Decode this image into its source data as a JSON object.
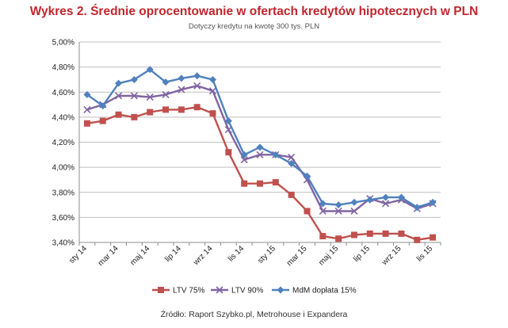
{
  "header": {
    "title": "Wykres 2. Średnie oprocentowanie w ofertach kredytów hipotecznych w PLN",
    "subtitle": "Dotyczy kredytu na kwotę 300 tys. PLN"
  },
  "footer": {
    "source": "Źródło: Raport Szybko.pl, Metrohouse i Expandera"
  },
  "chart_data": {
    "type": "line",
    "title": "Wykres 2. Średnie oprocentowanie w ofertach kredytów hipotecznych w PLN",
    "subtitle": "Dotyczy kredytu na kwotę 300 tys. PLN",
    "xlabel": "",
    "ylabel": "",
    "ylim": [
      3.4,
      5.0
    ],
    "ytick_step": 0.2,
    "yticks": [
      "3,40%",
      "3,60%",
      "3,80%",
      "4,00%",
      "4,20%",
      "4,40%",
      "4,60%",
      "4,80%",
      "5,00%"
    ],
    "grid": "horizontal",
    "legend_position": "bottom",
    "x": [
      "sty 14",
      "lut 14",
      "mar 14",
      "kwi 14",
      "maj 14",
      "cze 14",
      "lip 14",
      "sie 14",
      "wrz 14",
      "paź 14",
      "lis 14",
      "gru 14",
      "sty 15",
      "lut 15",
      "mar 15",
      "kwi 15",
      "maj 15",
      "cze 15",
      "lip 15",
      "sie 15",
      "wrz 15",
      "paź 15",
      "lis 15"
    ],
    "xtick_labels": [
      "sty 14",
      "mar 14",
      "maj 14",
      "lip 14",
      "wrz 14",
      "lis 14",
      "sty 15",
      "mar 15",
      "maj 15",
      "lip 15",
      "wrz 15",
      "lis 15"
    ],
    "series": [
      {
        "name": "LTV 75%",
        "color": "#c0504d",
        "marker": "square",
        "values": [
          4.35,
          4.37,
          4.42,
          4.4,
          4.44,
          4.46,
          4.46,
          4.48,
          4.43,
          4.12,
          3.87,
          3.87,
          3.88,
          3.78,
          3.65,
          3.45,
          3.43,
          3.46,
          3.47,
          3.47,
          3.47,
          3.42,
          3.44
        ]
      },
      {
        "name": "LTV 90%",
        "color": "#8064a2",
        "marker": "x",
        "values": [
          4.46,
          4.5,
          4.57,
          4.57,
          4.56,
          4.58,
          4.62,
          4.65,
          4.61,
          4.3,
          4.06,
          4.1,
          4.1,
          4.08,
          3.9,
          3.65,
          3.65,
          3.65,
          3.75,
          3.71,
          3.74,
          3.67,
          3.71
        ]
      },
      {
        "name": "MdM dopłata 15%",
        "color": "#4f81bd",
        "marker": "diamond",
        "values": [
          4.58,
          4.49,
          4.67,
          4.7,
          4.78,
          4.68,
          4.71,
          4.73,
          4.7,
          4.37,
          4.1,
          4.16,
          4.1,
          4.03,
          3.93,
          3.71,
          3.7,
          3.72,
          3.74,
          3.76,
          3.76,
          3.68,
          3.72
        ]
      }
    ]
  }
}
